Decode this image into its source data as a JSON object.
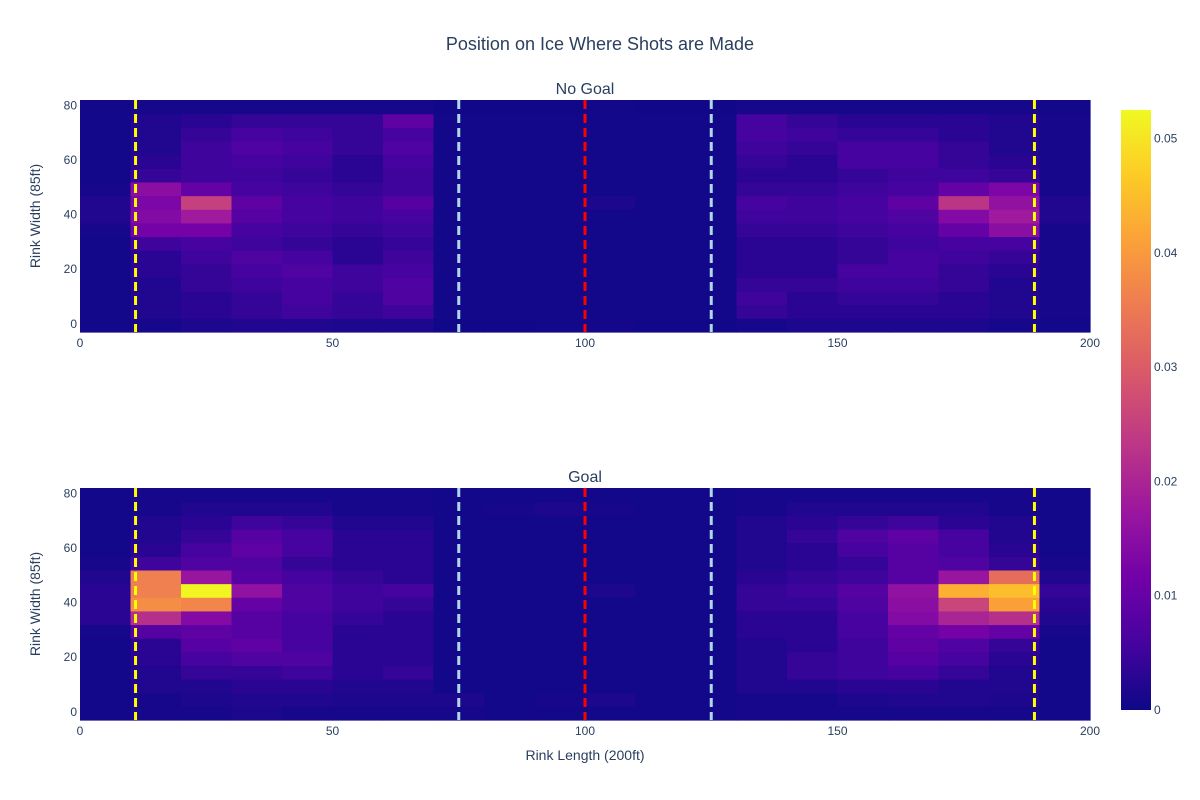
{
  "chart_data": {
    "type": "heatmap",
    "title": "Position on Ice Where Shots are Made",
    "xlabel": "Rink Length (200ft)",
    "ylabel": "Rink Width (85ft)",
    "xlim": [
      0,
      200
    ],
    "ylim": [
      -3,
      82
    ],
    "x_ticks": [
      "0",
      "50",
      "100",
      "150",
      "200"
    ],
    "y_ticks": [
      "0",
      "20",
      "40",
      "60",
      "80"
    ],
    "x_bins": [
      0,
      10,
      20,
      30,
      40,
      50,
      60,
      70,
      80,
      90,
      100,
      110,
      120,
      130,
      140,
      150,
      160,
      170,
      180,
      190,
      200
    ],
    "y_bins": [
      -3,
      2,
      7,
      12,
      17,
      22,
      27,
      32,
      37,
      42,
      47,
      52,
      57,
      62,
      67,
      72,
      77,
      82
    ],
    "colorscale_name": "plasma",
    "colorscale": [
      "#0d0887",
      "#46039f",
      "#7201a8",
      "#9c179e",
      "#bd3786",
      "#d8576b",
      "#ed7953",
      "#fb9f3a",
      "#fdca26",
      "#f0f921"
    ],
    "colorbar": {
      "range": [
        0,
        0.0525
      ],
      "ticks": [
        "0",
        "0.01",
        "0.02",
        "0.03",
        "0.04",
        "0.05"
      ]
    },
    "reference_lines": [
      {
        "x": 11,
        "color": "#ffff00"
      },
      {
        "x": 75,
        "color": "#add8e6"
      },
      {
        "x": 100,
        "color": "#ff0000"
      },
      {
        "x": 125,
        "color": "#add8e6"
      },
      {
        "x": 189,
        "color": "#ffff00"
      }
    ],
    "panels": [
      {
        "title": "No Goal",
        "z": [
          [
            0.0005,
            0.001,
            0.0015,
            0.002,
            0.002,
            0.0015,
            0.0015,
            0.0003,
            0.0003,
            0.0005,
            0.0008,
            0.0003,
            0.0003,
            0.001,
            0.0015,
            0.0015,
            0.0015,
            0.0015,
            0.001,
            0.0005
          ],
          [
            0.0005,
            0.002,
            0.003,
            0.004,
            0.005,
            0.004,
            0.005,
            0.0005,
            0.0005,
            0.0005,
            0.0005,
            0.0005,
            0.0005,
            0.004,
            0.003,
            0.003,
            0.003,
            0.003,
            0.002,
            0.001
          ],
          [
            0.0005,
            0.002,
            0.003,
            0.004,
            0.006,
            0.004,
            0.007,
            0.0005,
            0.0005,
            0.0005,
            0.0005,
            0.0005,
            0.0005,
            0.005,
            0.003,
            0.004,
            0.004,
            0.003,
            0.002,
            0.001
          ],
          [
            0.0005,
            0.002,
            0.004,
            0.005,
            0.006,
            0.005,
            0.007,
            0.0005,
            0.0005,
            0.0005,
            0.0005,
            0.0005,
            0.0005,
            0.004,
            0.004,
            0.005,
            0.005,
            0.004,
            0.002,
            0.001
          ],
          [
            0.0005,
            0.003,
            0.004,
            0.006,
            0.007,
            0.005,
            0.006,
            0.0005,
            0.0005,
            0.0005,
            0.0005,
            0.0005,
            0.0005,
            0.003,
            0.003,
            0.006,
            0.006,
            0.004,
            0.003,
            0.001
          ],
          [
            0.0005,
            0.003,
            0.005,
            0.007,
            0.006,
            0.003,
            0.005,
            0.0005,
            0.0005,
            0.0005,
            0.0005,
            0.0005,
            0.0005,
            0.003,
            0.003,
            0.004,
            0.006,
            0.005,
            0.004,
            0.001
          ],
          [
            0.0005,
            0.005,
            0.006,
            0.005,
            0.004,
            0.003,
            0.004,
            0.0005,
            0.0005,
            0.0005,
            0.0005,
            0.0005,
            0.0005,
            0.003,
            0.003,
            0.004,
            0.005,
            0.006,
            0.006,
            0.001
          ],
          [
            0.001,
            0.012,
            0.012,
            0.006,
            0.005,
            0.004,
            0.005,
            0.0005,
            0.0005,
            0.0005,
            0.0005,
            0.0005,
            0.0005,
            0.004,
            0.004,
            0.005,
            0.006,
            0.01,
            0.015,
            0.001
          ],
          [
            0.002,
            0.014,
            0.018,
            0.008,
            0.006,
            0.005,
            0.006,
            0.0005,
            0.0005,
            0.0005,
            0.0005,
            0.0005,
            0.0005,
            0.005,
            0.005,
            0.006,
            0.007,
            0.014,
            0.018,
            0.002
          ],
          [
            0.002,
            0.013,
            0.025,
            0.009,
            0.006,
            0.005,
            0.008,
            0.0005,
            0.0005,
            0.0005,
            0.0015,
            0.0005,
            0.0005,
            0.006,
            0.005,
            0.006,
            0.009,
            0.023,
            0.016,
            0.002
          ],
          [
            0.001,
            0.015,
            0.01,
            0.006,
            0.005,
            0.004,
            0.005,
            0.0005,
            0.0005,
            0.0005,
            0.0005,
            0.0005,
            0.0005,
            0.004,
            0.004,
            0.005,
            0.006,
            0.01,
            0.013,
            0.001
          ],
          [
            0.0005,
            0.004,
            0.005,
            0.005,
            0.004,
            0.003,
            0.005,
            0.0005,
            0.0005,
            0.0005,
            0.0005,
            0.0005,
            0.0005,
            0.003,
            0.003,
            0.004,
            0.005,
            0.005,
            0.004,
            0.001
          ],
          [
            0.0005,
            0.003,
            0.005,
            0.006,
            0.005,
            0.003,
            0.006,
            0.0005,
            0.0005,
            0.0005,
            0.0005,
            0.0005,
            0.0005,
            0.004,
            0.003,
            0.006,
            0.006,
            0.004,
            0.003,
            0.001
          ],
          [
            0.0005,
            0.002,
            0.005,
            0.007,
            0.006,
            0.004,
            0.007,
            0.0005,
            0.0005,
            0.0005,
            0.0005,
            0.0005,
            0.0005,
            0.005,
            0.004,
            0.006,
            0.006,
            0.004,
            0.002,
            0.001
          ],
          [
            0.0005,
            0.002,
            0.004,
            0.006,
            0.005,
            0.004,
            0.006,
            0.0005,
            0.0005,
            0.0005,
            0.0005,
            0.0005,
            0.0005,
            0.006,
            0.005,
            0.004,
            0.004,
            0.003,
            0.002,
            0.001
          ],
          [
            0.0005,
            0.002,
            0.003,
            0.004,
            0.004,
            0.004,
            0.009,
            0.0005,
            0.0005,
            0.0005,
            0.0005,
            0.0005,
            0.0005,
            0.006,
            0.004,
            0.003,
            0.003,
            0.003,
            0.002,
            0.001
          ],
          [
            0.0005,
            0.001,
            0.001,
            0.001,
            0.001,
            0.001,
            0.001,
            0.0003,
            0.0003,
            0.0003,
            0.0005,
            0.0003,
            0.0003,
            0.001,
            0.001,
            0.001,
            0.001,
            0.001,
            0.001,
            0.0005
          ]
        ]
      },
      {
        "title": "Goal",
        "z": [
          [
            0.0005,
            0.001,
            0.001,
            0.0015,
            0.001,
            0.001,
            0.001,
            0.001,
            0.0005,
            0.0005,
            0.0005,
            0.0005,
            0.0005,
            0.001,
            0.001,
            0.001,
            0.001,
            0.001,
            0.001,
            0.0005
          ],
          [
            0.0005,
            0.001,
            0.0015,
            0.002,
            0.002,
            0.0015,
            0.0015,
            0.0015,
            0.0005,
            0.001,
            0.0015,
            0.0005,
            0.0005,
            0.001,
            0.001,
            0.0015,
            0.002,
            0.002,
            0.0015,
            0.0005
          ],
          [
            0.0005,
            0.002,
            0.002,
            0.003,
            0.003,
            0.002,
            0.002,
            0.0005,
            0.0005,
            0.0005,
            0.0005,
            0.0005,
            0.0005,
            0.002,
            0.002,
            0.003,
            0.003,
            0.002,
            0.002,
            0.0005
          ],
          [
            0.0005,
            0.002,
            0.004,
            0.004,
            0.005,
            0.003,
            0.004,
            0.0005,
            0.0005,
            0.0005,
            0.0005,
            0.0005,
            0.0005,
            0.002,
            0.004,
            0.005,
            0.006,
            0.004,
            0.002,
            0.0005
          ],
          [
            0.0005,
            0.003,
            0.006,
            0.007,
            0.007,
            0.003,
            0.003,
            0.0005,
            0.0005,
            0.0005,
            0.0005,
            0.0005,
            0.0005,
            0.002,
            0.004,
            0.005,
            0.008,
            0.006,
            0.003,
            0.0005
          ],
          [
            0.0005,
            0.003,
            0.008,
            0.009,
            0.006,
            0.003,
            0.003,
            0.0005,
            0.0005,
            0.0005,
            0.0005,
            0.0005,
            0.0005,
            0.002,
            0.003,
            0.005,
            0.009,
            0.007,
            0.004,
            0.0005
          ],
          [
            0.001,
            0.008,
            0.009,
            0.008,
            0.006,
            0.003,
            0.003,
            0.0005,
            0.0005,
            0.0005,
            0.0005,
            0.0005,
            0.0005,
            0.003,
            0.003,
            0.006,
            0.01,
            0.012,
            0.01,
            0.001
          ],
          [
            0.003,
            0.022,
            0.014,
            0.008,
            0.006,
            0.004,
            0.003,
            0.0005,
            0.0005,
            0.0005,
            0.0005,
            0.0005,
            0.0005,
            0.003,
            0.003,
            0.006,
            0.014,
            0.02,
            0.022,
            0.002
          ],
          [
            0.003,
            0.038,
            0.037,
            0.01,
            0.007,
            0.005,
            0.004,
            0.0005,
            0.0005,
            0.0005,
            0.0005,
            0.0005,
            0.0005,
            0.004,
            0.004,
            0.007,
            0.015,
            0.026,
            0.041,
            0.003
          ],
          [
            0.003,
            0.036,
            0.052,
            0.016,
            0.007,
            0.005,
            0.006,
            0.0005,
            0.0005,
            0.0005,
            0.0015,
            0.0005,
            0.0005,
            0.004,
            0.005,
            0.008,
            0.016,
            0.043,
            0.045,
            0.004
          ],
          [
            0.002,
            0.036,
            0.017,
            0.008,
            0.006,
            0.004,
            0.003,
            0.0005,
            0.0005,
            0.0005,
            0.0005,
            0.0005,
            0.0005,
            0.003,
            0.004,
            0.005,
            0.008,
            0.017,
            0.033,
            0.002
          ],
          [
            0.001,
            0.005,
            0.007,
            0.007,
            0.004,
            0.003,
            0.003,
            0.0005,
            0.0005,
            0.0005,
            0.0005,
            0.0005,
            0.0005,
            0.002,
            0.003,
            0.004,
            0.008,
            0.007,
            0.004,
            0.001
          ],
          [
            0.0005,
            0.003,
            0.006,
            0.009,
            0.006,
            0.003,
            0.003,
            0.0005,
            0.0005,
            0.0005,
            0.0005,
            0.0005,
            0.0005,
            0.002,
            0.003,
            0.006,
            0.008,
            0.006,
            0.003,
            0.0005
          ],
          [
            0.0005,
            0.002,
            0.004,
            0.008,
            0.006,
            0.003,
            0.003,
            0.0005,
            0.0005,
            0.0005,
            0.0005,
            0.0005,
            0.0005,
            0.002,
            0.004,
            0.007,
            0.009,
            0.006,
            0.002,
            0.0005
          ],
          [
            0.0005,
            0.002,
            0.003,
            0.005,
            0.004,
            0.002,
            0.002,
            0.0005,
            0.0005,
            0.0005,
            0.0005,
            0.0005,
            0.0005,
            0.002,
            0.003,
            0.004,
            0.005,
            0.003,
            0.002,
            0.0005
          ],
          [
            0.0005,
            0.001,
            0.002,
            0.002,
            0.002,
            0.001,
            0.001,
            0.0005,
            0.001,
            0.0015,
            0.001,
            0.0005,
            0.0005,
            0.001,
            0.002,
            0.002,
            0.002,
            0.002,
            0.001,
            0.0005
          ],
          [
            0.0005,
            0.001,
            0.001,
            0.001,
            0.001,
            0.001,
            0.001,
            0.0005,
            0.0005,
            0.0005,
            0.0005,
            0.0005,
            0.0005,
            0.001,
            0.001,
            0.001,
            0.001,
            0.001,
            0.001,
            0.0005
          ]
        ]
      }
    ]
  }
}
